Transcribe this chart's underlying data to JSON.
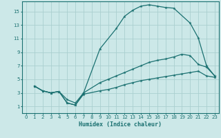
{
  "xlabel": "Humidex (Indice chaleur)",
  "background_color": "#cce8e8",
  "grid_color": "#aacfcf",
  "line_color": "#1a7070",
  "xlim": [
    -0.5,
    23.5
  ],
  "ylim": [
    0,
    16.5
  ],
  "xticks": [
    0,
    1,
    2,
    3,
    4,
    5,
    6,
    7,
    8,
    9,
    10,
    11,
    12,
    13,
    14,
    15,
    16,
    17,
    18,
    19,
    20,
    21,
    22,
    23
  ],
  "yticks": [
    1,
    3,
    5,
    7,
    9,
    11,
    13,
    15
  ],
  "curve1_x": [
    1,
    2,
    3,
    4,
    5,
    6,
    7,
    9,
    11,
    12,
    13,
    14,
    15,
    16,
    17,
    18,
    20,
    21,
    22,
    23
  ],
  "curve1_y": [
    4,
    3.3,
    3,
    3.2,
    2,
    1.5,
    3,
    9.5,
    12.5,
    14.3,
    15.2,
    15.8,
    16.0,
    15.8,
    15.6,
    15.5,
    13.3,
    11.1,
    7.0,
    5.5
  ],
  "curve2_x": [
    1,
    2,
    3,
    4,
    5,
    6,
    7,
    9,
    10,
    11,
    12,
    13,
    14,
    15,
    16,
    17,
    18,
    19,
    20,
    21,
    22,
    23
  ],
  "curve2_y": [
    4,
    3.3,
    3,
    3.2,
    1.5,
    1.2,
    3.0,
    4.5,
    5.0,
    5.5,
    6.0,
    6.5,
    7.0,
    7.5,
    7.8,
    8.0,
    8.3,
    8.7,
    8.5,
    7.2,
    6.8,
    5.5
  ],
  "curve3_x": [
    1,
    2,
    3,
    4,
    5,
    6,
    7,
    9,
    10,
    11,
    12,
    13,
    14,
    15,
    16,
    17,
    18,
    19,
    20,
    21,
    22,
    23
  ],
  "curve3_y": [
    4,
    3.3,
    3,
    3.2,
    1.5,
    1.2,
    2.8,
    3.3,
    3.5,
    3.8,
    4.2,
    4.5,
    4.8,
    5.0,
    5.2,
    5.4,
    5.6,
    5.8,
    6.0,
    6.2,
    5.5,
    5.3
  ]
}
